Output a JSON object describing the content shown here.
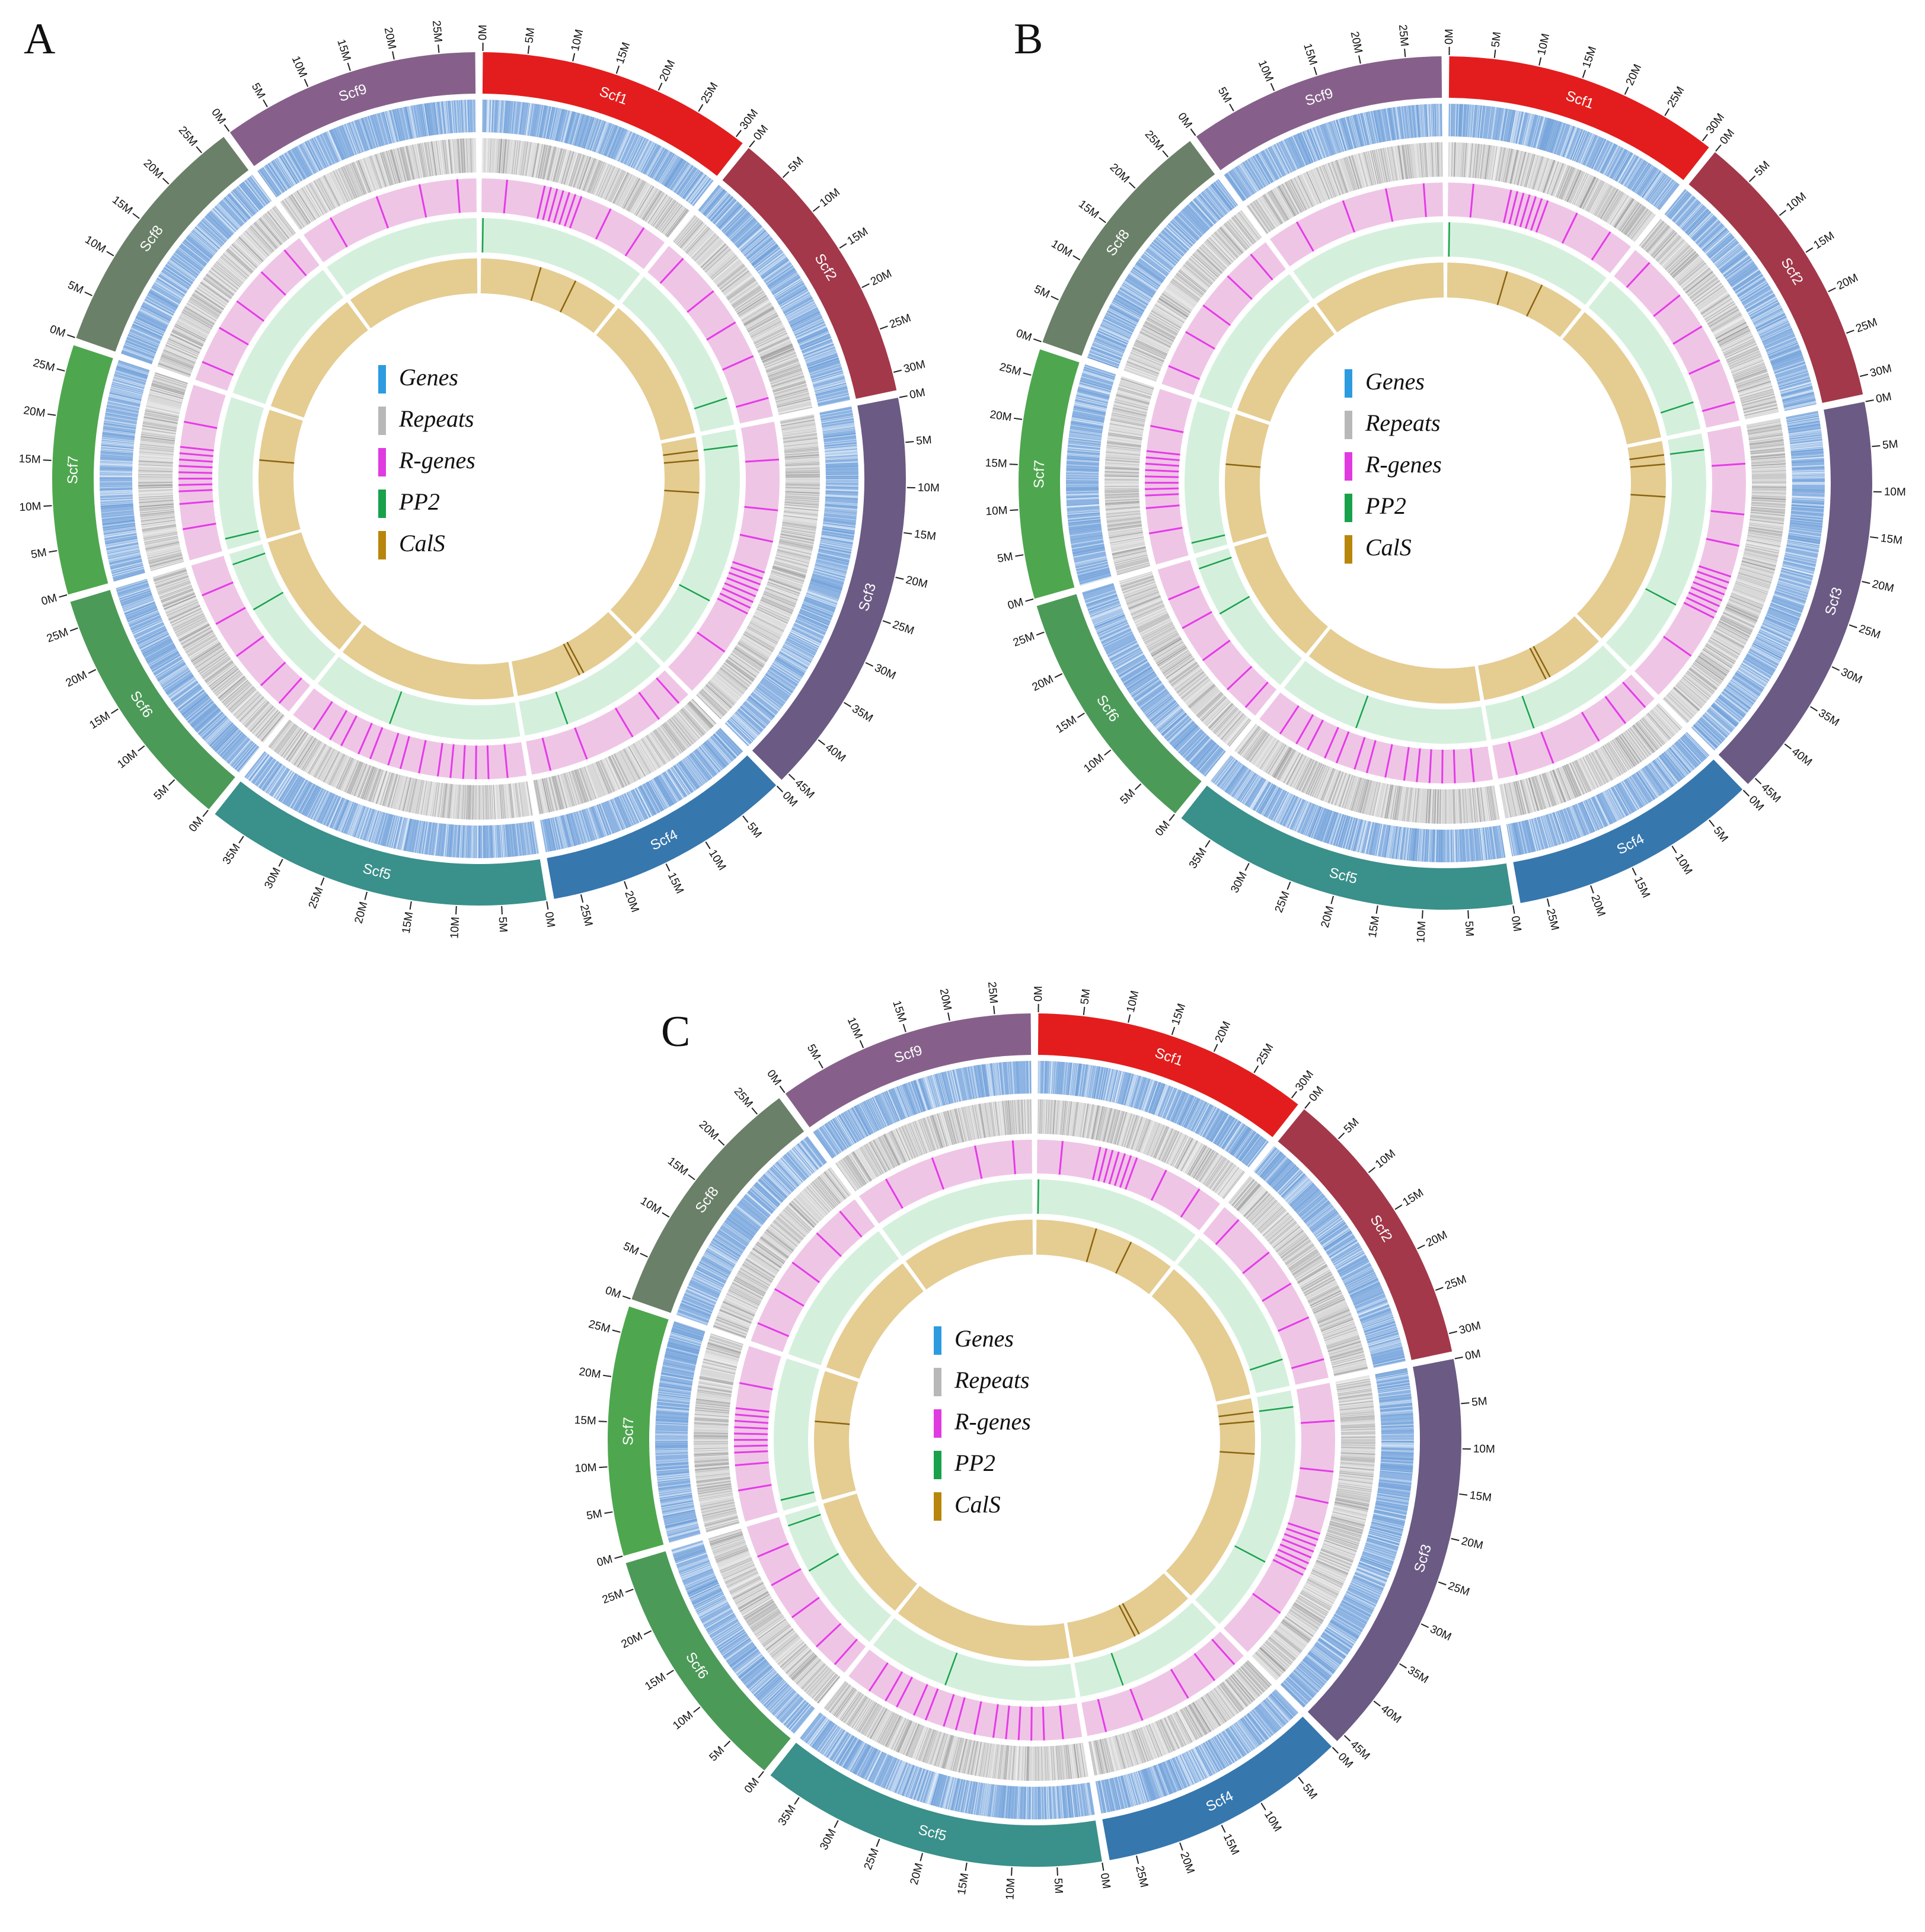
{
  "panels": [
    {
      "letter": "A"
    },
    {
      "letter": "B"
    },
    {
      "letter": "C"
    }
  ],
  "scaffolds": [
    {
      "name": "Scf1",
      "length_mb": 31,
      "color": "#e31d1d"
    },
    {
      "name": "Scf2",
      "length_mb": 32,
      "color": "#a3384a"
    },
    {
      "name": "Scf3",
      "length_mb": 46,
      "color": "#6b5a84"
    },
    {
      "name": "Scf4",
      "length_mb": 28,
      "color": "#3677ae"
    },
    {
      "name": "Scf5",
      "length_mb": 39,
      "color": "#3a908a"
    },
    {
      "name": "Scf6",
      "length_mb": 28,
      "color": "#4c9a58"
    },
    {
      "name": "Scf7",
      "length_mb": 28,
      "color": "#4ea74e"
    },
    {
      "name": "Scf8",
      "length_mb": 28,
      "color": "#6a8068"
    },
    {
      "name": "Scf9",
      "length_mb": 29,
      "color": "#86608a"
    }
  ],
  "tick_step_mb": 5,
  "tick_unit_suffix": "M",
  "tracks": [
    {
      "name": "Genes",
      "color": "#3498db",
      "background": "#8db4e3"
    },
    {
      "name": "Repeats",
      "color": "#b3b3b3",
      "background": "#d8d8d8"
    },
    {
      "name": "R-genes",
      "color": "#e53be8",
      "background": "#efc5e6"
    },
    {
      "name": "PP2",
      "color": "#1aa14c",
      "background": "#d4f0dd"
    },
    {
      "name": "CalS",
      "color": "#b88a17",
      "background": "#e5cc91"
    }
  ],
  "legend": [
    {
      "label": "Genes",
      "color": "#2d9be0"
    },
    {
      "label": "Repeats",
      "color": "#b8b8b8"
    },
    {
      "label": "R-genes",
      "color": "#e03be0"
    },
    {
      "label": "PP2",
      "color": "#1aa14c"
    },
    {
      "label": "CalS",
      "color": "#b8860b"
    }
  ],
  "features": {
    "PP2": [
      {
        "scaffold": "Scf1",
        "position_mb": 0.3
      },
      {
        "scaffold": "Scf2",
        "position_mb": 27
      },
      {
        "scaffold": "Scf3",
        "position_mb": 3
      },
      {
        "scaffold": "Scf3",
        "position_mb": 32
      },
      {
        "scaffold": "Scf4",
        "position_mb": 20
      },
      {
        "scaffold": "Scf5",
        "position_mb": 24
      },
      {
        "scaffold": "Scf6",
        "position_mb": 17
      },
      {
        "scaffold": "Scf6",
        "position_mb": 26
      },
      {
        "scaffold": "Scf7",
        "position_mb": 2
      }
    ],
    "CalS": [
      {
        "scaffold": "Scf1",
        "position_mb": 13
      },
      {
        "scaffold": "Scf1",
        "position_mb": 21
      },
      {
        "scaffold": "Scf3",
        "position_mb": 3
      },
      {
        "scaffold": "Scf3",
        "position_mb": 5
      },
      {
        "scaffold": "Scf3",
        "position_mb": 12
      },
      {
        "scaffold": "Scf4",
        "position_mb": 13
      },
      {
        "scaffold": "Scf4",
        "position_mb": 14
      },
      {
        "scaffold": "Scf7",
        "position_mb": 17
      }
    ],
    "R-genes": [
      {
        "scaffold": "Scf1",
        "position_mb": 4
      },
      {
        "scaffold": "Scf1",
        "position_mb": 10
      },
      {
        "scaffold": "Scf1",
        "position_mb": 11
      },
      {
        "scaffold": "Scf1",
        "position_mb": 12
      },
      {
        "scaffold": "Scf1",
        "position_mb": 13
      },
      {
        "scaffold": "Scf1",
        "position_mb": 14
      },
      {
        "scaffold": "Scf1",
        "position_mb": 15
      },
      {
        "scaffold": "Scf1",
        "position_mb": 16
      },
      {
        "scaffold": "Scf1",
        "position_mb": 21
      },
      {
        "scaffold": "Scf1",
        "position_mb": 27
      },
      {
        "scaffold": "Scf2",
        "position_mb": 3
      },
      {
        "scaffold": "Scf2",
        "position_mb": 10
      },
      {
        "scaffold": "Scf2",
        "position_mb": 16
      },
      {
        "scaffold": "Scf2",
        "position_mb": 22
      },
      {
        "scaffold": "Scf2",
        "position_mb": 29
      },
      {
        "scaffold": "Scf3",
        "position_mb": 6
      },
      {
        "scaffold": "Scf3",
        "position_mb": 14
      },
      {
        "scaffold": "Scf3",
        "position_mb": 19
      },
      {
        "scaffold": "Scf3",
        "position_mb": 24
      },
      {
        "scaffold": "Scf3",
        "position_mb": 25
      },
      {
        "scaffold": "Scf3",
        "position_mb": 26
      },
      {
        "scaffold": "Scf3",
        "position_mb": 27
      },
      {
        "scaffold": "Scf3",
        "position_mb": 28
      },
      {
        "scaffold": "Scf3",
        "position_mb": 29
      },
      {
        "scaffold": "Scf3",
        "position_mb": 30
      },
      {
        "scaffold": "Scf3",
        "position_mb": 31
      },
      {
        "scaffold": "Scf3",
        "position_mb": 38
      },
      {
        "scaffold": "Scf4",
        "position_mb": 2
      },
      {
        "scaffold": "Scf4",
        "position_mb": 6
      },
      {
        "scaffold": "Scf4",
        "position_mb": 11
      },
      {
        "scaffold": "Scf4",
        "position_mb": 19
      },
      {
        "scaffold": "Scf4",
        "position_mb": 25
      },
      {
        "scaffold": "Scf5",
        "position_mb": 3
      },
      {
        "scaffold": "Scf5",
        "position_mb": 6
      },
      {
        "scaffold": "Scf5",
        "position_mb": 8
      },
      {
        "scaffold": "Scf5",
        "position_mb": 10
      },
      {
        "scaffold": "Scf5",
        "position_mb": 12
      },
      {
        "scaffold": "Scf5",
        "position_mb": 14
      },
      {
        "scaffold": "Scf5",
        "position_mb": 17
      },
      {
        "scaffold": "Scf5",
        "position_mb": 20
      },
      {
        "scaffold": "Scf5",
        "position_mb": 22
      },
      {
        "scaffold": "Scf5",
        "position_mb": 25
      },
      {
        "scaffold": "Scf5",
        "position_mb": 27
      },
      {
        "scaffold": "Scf5",
        "position_mb": 30
      },
      {
        "scaffold": "Scf5",
        "position_mb": 32
      },
      {
        "scaffold": "Scf5",
        "position_mb": 35
      },
      {
        "scaffold": "Scf6",
        "position_mb": 2
      },
      {
        "scaffold": "Scf6",
        "position_mb": 6
      },
      {
        "scaffold": "Scf6",
        "position_mb": 12
      },
      {
        "scaffold": "Scf6",
        "position_mb": 18
      },
      {
        "scaffold": "Scf6",
        "position_mb": 23
      },
      {
        "scaffold": "Scf7",
        "position_mb": 5
      },
      {
        "scaffold": "Scf7",
        "position_mb": 9
      },
      {
        "scaffold": "Scf7",
        "position_mb": 11
      },
      {
        "scaffold": "Scf7",
        "position_mb": 12
      },
      {
        "scaffold": "Scf7",
        "position_mb": 13
      },
      {
        "scaffold": "Scf7",
        "position_mb": 14
      },
      {
        "scaffold": "Scf7",
        "position_mb": 15
      },
      {
        "scaffold": "Scf7",
        "position_mb": 16
      },
      {
        "scaffold": "Scf7",
        "position_mb": 17
      },
      {
        "scaffold": "Scf7",
        "position_mb": 18
      },
      {
        "scaffold": "Scf7",
        "position_mb": 22
      },
      {
        "scaffold": "Scf8",
        "position_mb": 3
      },
      {
        "scaffold": "Scf8",
        "position_mb": 9
      },
      {
        "scaffold": "Scf8",
        "position_mb": 14
      },
      {
        "scaffold": "Scf8",
        "position_mb": 20
      },
      {
        "scaffold": "Scf8",
        "position_mb": 25
      },
      {
        "scaffold": "Scf9",
        "position_mb": 5
      },
      {
        "scaffold": "Scf9",
        "position_mb": 13
      },
      {
        "scaffold": "Scf9",
        "position_mb": 20
      },
      {
        "scaffold": "Scf9",
        "position_mb": 26
      }
    ]
  }
}
